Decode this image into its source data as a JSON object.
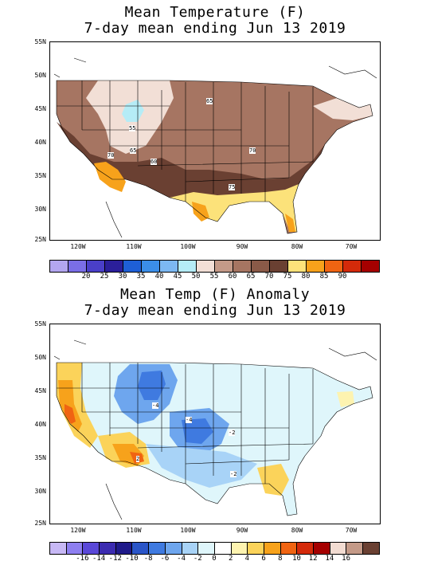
{
  "top": {
    "title_line1": "Mean Temperature (F)",
    "title_line2": "7-day mean ending Jun 13 2019",
    "lat_labels": [
      "55N",
      "50N",
      "45N",
      "40N",
      "35N",
      "30N",
      "25N"
    ],
    "lon_labels": [
      "120W",
      "110W",
      "100W",
      "90W",
      "80W",
      "70W"
    ],
    "contour_labels": [
      "55",
      "60",
      "65",
      "65",
      "70",
      "70",
      "75"
    ],
    "colorbar": {
      "colors": [
        "#b3a6f0",
        "#7a6ee6",
        "#4a3fc8",
        "#2b1f9a",
        "#1e5fd6",
        "#3b8ee8",
        "#7cb8f2",
        "#b5ecf6",
        "#f2dfd6",
        "#c49a88",
        "#a67562",
        "#8a5a48",
        "#6a4032",
        "#fce27a",
        "#f7a21b",
        "#f06412",
        "#d42a0a",
        "#a50000"
      ],
      "labels": [
        "20",
        "25",
        "30",
        "35",
        "40",
        "45",
        "50",
        "55",
        "60",
        "65",
        "70",
        "75",
        "80",
        "85",
        "90"
      ]
    }
  },
  "bottom": {
    "title_line1": "Mean Temp (F) Anomaly",
    "title_line2": "7-day mean ending Jun 13 2019",
    "lat_labels": [
      "55N",
      "50N",
      "45N",
      "40N",
      "35N",
      "30N",
      "25N"
    ],
    "lon_labels": [
      "120W",
      "110W",
      "100W",
      "90W",
      "80W",
      "70W"
    ],
    "contour_labels": [
      "-4",
      "-4",
      "-2",
      "-2",
      "2"
    ],
    "colorbar": {
      "colors": [
        "#c7b8f5",
        "#8e7ff0",
        "#5a48d8",
        "#3b2bb0",
        "#1f1a8a",
        "#2a55c8",
        "#3f7ae0",
        "#6ea6ee",
        "#a8d3f7",
        "#dff6fb",
        "#ffffff",
        "#fdf3b0",
        "#fbd35a",
        "#f7a21b",
        "#f06412",
        "#d42a0a",
        "#a50000",
        "#f2dcd2",
        "#c49a88",
        "#6a4032"
      ],
      "labels": [
        "-16",
        "-14",
        "-12",
        "-10",
        "-8",
        "-6",
        "-4",
        "-2",
        "0",
        "2",
        "4",
        "6",
        "8",
        "10",
        "12",
        "14",
        "16"
      ]
    }
  }
}
